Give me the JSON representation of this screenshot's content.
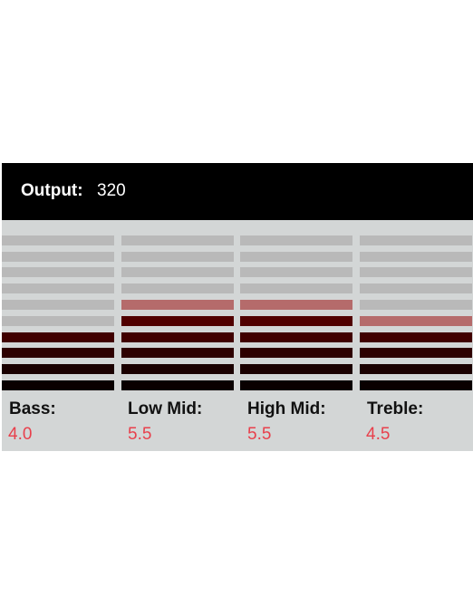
{
  "header": {
    "output_label": "Output:",
    "output_value": "320"
  },
  "bands": [
    {
      "label": "Bass:",
      "value": "4.0",
      "level": 4.0
    },
    {
      "label": "Low Mid:",
      "value": "5.5",
      "level": 5.5
    },
    {
      "label": "High Mid:",
      "value": "5.5",
      "level": 5.5
    },
    {
      "label": "Treble:",
      "value": "4.5",
      "level": 4.5
    }
  ],
  "meter": {
    "segment_count": 10,
    "unlit_color": "#b9b9b9",
    "lit_colors": [
      "#090000",
      "#1a0000",
      "#2e0000",
      "#400000",
      "#500000",
      "#650000",
      "#b56b6b"
    ],
    "half_lit_color": "#b56b6b",
    "label_color": "#111111",
    "value_color": "#e8404c"
  }
}
